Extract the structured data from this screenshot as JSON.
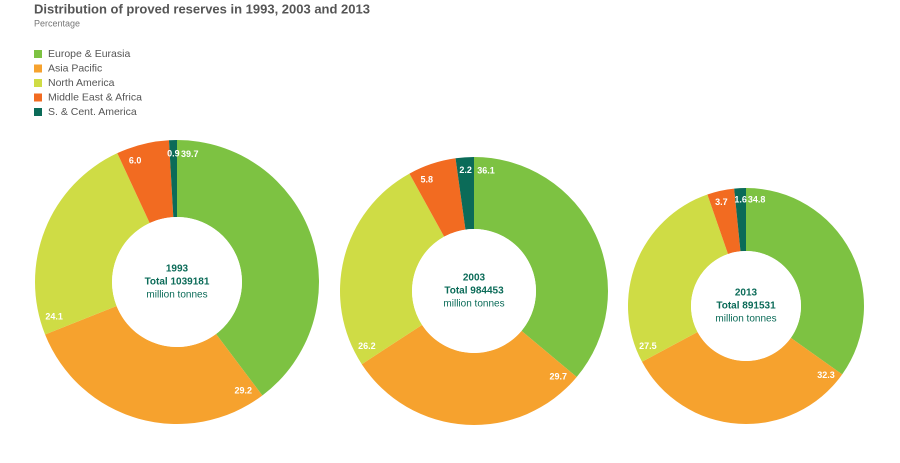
{
  "header": {
    "title": "Distribution of proved reserves in 1993, 2003 and 2013",
    "subtitle": "Percentage"
  },
  "chart_data": [
    {
      "type": "donut",
      "categories": [
        "Europe & Eurasia",
        "Asia Pacific",
        "North America",
        "Middle East & Africa",
        "S. & Cent. America"
      ],
      "colors": [
        "#7dc242",
        "#f6a22e",
        "#cfdc45",
        "#f26b21",
        "#0b6b58"
      ],
      "values": [
        39.7,
        29.2,
        24.1,
        6,
        0.9
      ],
      "value_labels": [
        "39.7",
        "29.2",
        "24.1",
        "6.0",
        "0.9"
      ],
      "center_labels": [
        "1993",
        "Total 1039181",
        "million tonnes"
      ]
    },
    {
      "type": "donut",
      "categories": [
        "Europe & Eurasia",
        "Asia Pacific",
        "North America",
        "Middle East & Africa",
        "S. & Cent. America"
      ],
      "colors": [
        "#7dc242",
        "#f6a22e",
        "#cfdc45",
        "#f26b21",
        "#0b6b58"
      ],
      "values": [
        36.1,
        29.7,
        26.2,
        5.8,
        2.2
      ],
      "value_labels": [
        "36.1",
        "29.7",
        "26.2",
        "5.8",
        "2.2"
      ],
      "center_labels": [
        "2003",
        "Total 984453",
        "million tonnes"
      ]
    },
    {
      "type": "donut",
      "categories": [
        "Europe & Eurasia",
        "Asia Pacific",
        "North America",
        "Middle East & Africa",
        "S. & Cent. America"
      ],
      "colors": [
        "#7dc242",
        "#f6a22e",
        "#cfdc45",
        "#f26b21",
        "#0b6b58"
      ],
      "values": [
        34.8,
        32.3,
        27.5,
        3.7,
        1.6
      ],
      "value_labels": [
        "34.8",
        "32.3",
        "27.5",
        "3.7",
        "1.6"
      ],
      "center_labels": [
        "2013",
        "Total 891531",
        "million tonnes"
      ]
    }
  ]
}
